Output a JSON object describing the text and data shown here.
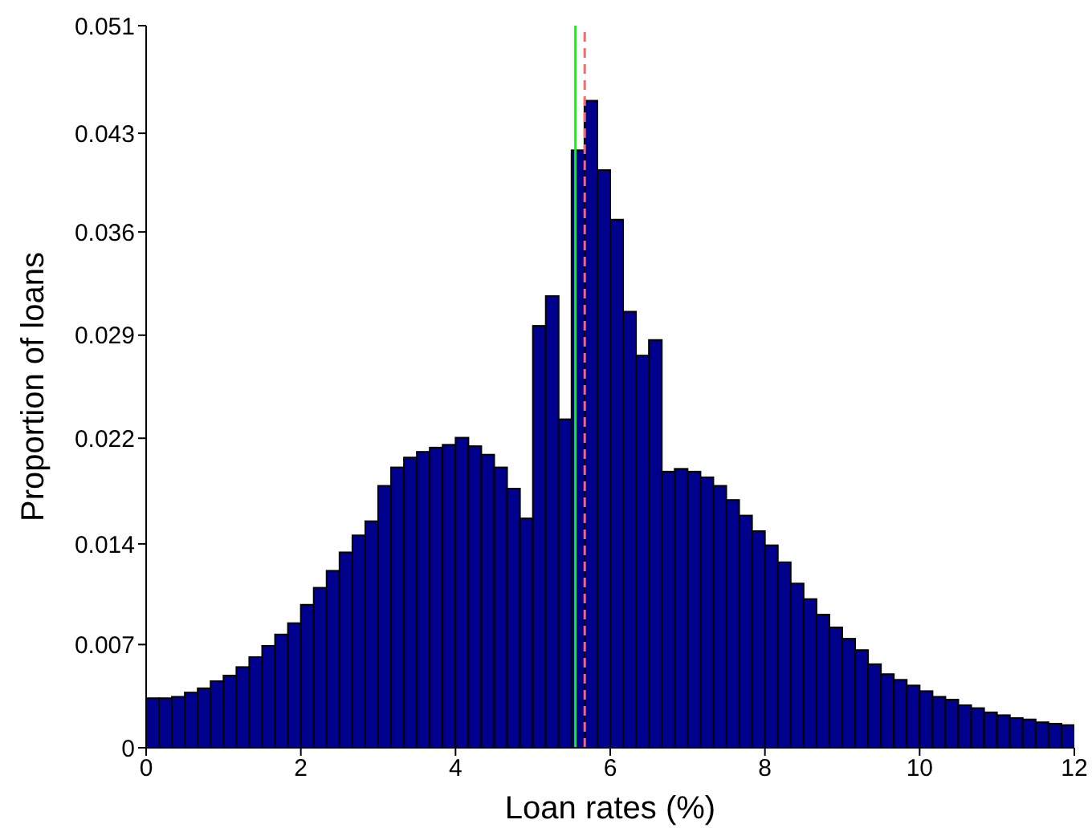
{
  "chart_data": {
    "type": "histogram",
    "xlabel": "Loan rates (%)",
    "ylabel": "Proportion of loans",
    "bins": [
      0,
      0.1667,
      0.3333,
      0.5,
      0.6667,
      0.8333,
      1,
      1.1667,
      1.3333,
      1.5,
      1.6667,
      1.8333,
      2,
      2.1667,
      2.3333,
      2.5,
      2.6667,
      2.8333,
      3,
      3.1667,
      3.3333,
      3.5,
      3.6667,
      3.8333,
      4,
      4.1667,
      4.3333,
      4.5,
      4.6667,
      4.8333,
      5,
      5.1667,
      5.3333,
      5.5,
      5.6667,
      5.8333,
      6,
      6.1667,
      6.3333,
      6.5,
      6.6667,
      6.8333,
      7,
      7.1667,
      7.3333,
      7.5,
      7.6667,
      7.8333,
      8,
      8.1667,
      8.3333,
      8.5,
      8.6667,
      8.8333,
      9,
      9.1667,
      9.3333,
      9.5,
      9.6667,
      9.8333,
      10,
      10.1667,
      10.3333,
      10.5,
      10.6667,
      10.8333,
      11,
      11.1667,
      11.3333,
      11.5,
      11.6667,
      11.8333,
      12
    ],
    "values": [
      0.0035,
      0.0035,
      0.0036,
      0.0039,
      0.0042,
      0.0047,
      0.0051,
      0.0057,
      0.0064,
      0.0072,
      0.008,
      0.0088,
      0.0101,
      0.0113,
      0.0125,
      0.0138,
      0.015,
      0.016,
      0.0185,
      0.0198,
      0.0205,
      0.0209,
      0.0212,
      0.0214,
      0.0219,
      0.0213,
      0.0207,
      0.0198,
      0.0183,
      0.0162,
      0.0298,
      0.0319,
      0.0232,
      0.0422,
      0.0457,
      0.0408,
      0.0373,
      0.0308,
      0.0277,
      0.0288,
      0.0195,
      0.0197,
      0.0195,
      0.0191,
      0.0185,
      0.0175,
      0.0164,
      0.0153,
      0.0143,
      0.0131,
      0.0116,
      0.0105,
      0.0094,
      0.0085,
      0.0077,
      0.0069,
      0.0059,
      0.0052,
      0.0048,
      0.0044,
      0.004,
      0.0036,
      0.0034,
      0.003,
      0.0028,
      0.0025,
      0.0023,
      0.0021,
      0.002,
      0.0018,
      0.0017,
      0.0016
    ],
    "color": "#00008f",
    "xlim": [
      0,
      12
    ],
    "xticks": [
      0,
      2,
      4,
      6,
      8,
      10,
      12
    ],
    "ylim": [
      0,
      0.051
    ],
    "yticks": [
      0,
      {
        "value": 0.00729,
        "label": "0.007"
      },
      {
        "value": 0.0144,
        "label": "0.014"
      },
      {
        "value": 0.02186,
        "label": "0.022"
      },
      {
        "value": 0.02914,
        "label": "0.029"
      },
      {
        "value": 0.03643,
        "label": "0.036"
      },
      {
        "value": 0.0434,
        "label": "0.043"
      },
      0.051
    ],
    "ref_lines": [
      {
        "axis": "x",
        "value": 5.55,
        "color": "#00ff00",
        "line_style": "solid"
      },
      {
        "axis": "x",
        "value": 5.67,
        "color": "#ff6666",
        "line_style": "dashed"
      }
    ],
    "grid": false,
    "legend": false
  }
}
